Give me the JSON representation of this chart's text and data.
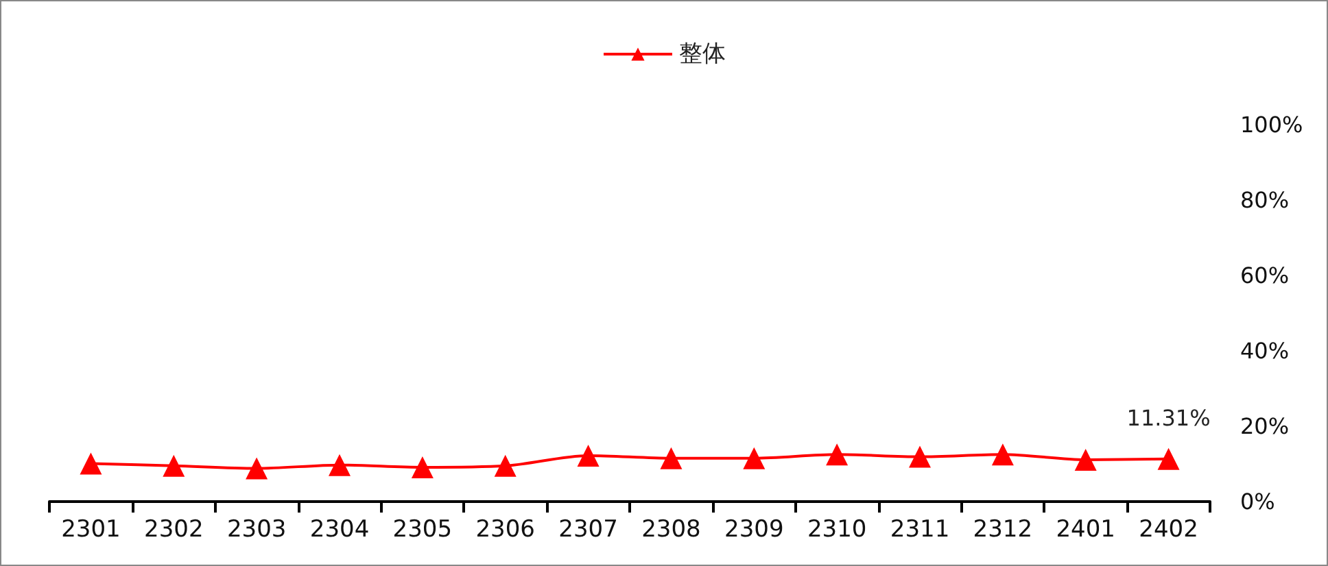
{
  "chart_data": {
    "type": "line",
    "categories": [
      "2301",
      "2302",
      "2303",
      "2304",
      "2305",
      "2306",
      "2307",
      "2308",
      "2309",
      "2310",
      "2311",
      "2312",
      "2401",
      "2402"
    ],
    "series": [
      {
        "name": "整体",
        "color": "#ff0000",
        "values": [
          10.1,
          9.5,
          8.8,
          9.7,
          9.1,
          9.5,
          12.2,
          11.5,
          11.5,
          12.5,
          11.9,
          12.5,
          11.1,
          11.31
        ],
        "value_labels": [
          null,
          null,
          null,
          null,
          null,
          null,
          null,
          null,
          null,
          null,
          null,
          null,
          null,
          "11.31%"
        ]
      }
    ],
    "ylim": [
      0,
      100
    ],
    "yticks": [
      {
        "value": 0,
        "label": "0%"
      },
      {
        "value": 20,
        "label": "20%"
      },
      {
        "value": 40,
        "label": "40%"
      },
      {
        "value": 60,
        "label": "60%"
      },
      {
        "value": 80,
        "label": "80%"
      },
      {
        "value": 100,
        "label": "100%"
      }
    ],
    "grid": false,
    "legend": "top",
    "marker": "triangle",
    "line_style": "solid"
  }
}
